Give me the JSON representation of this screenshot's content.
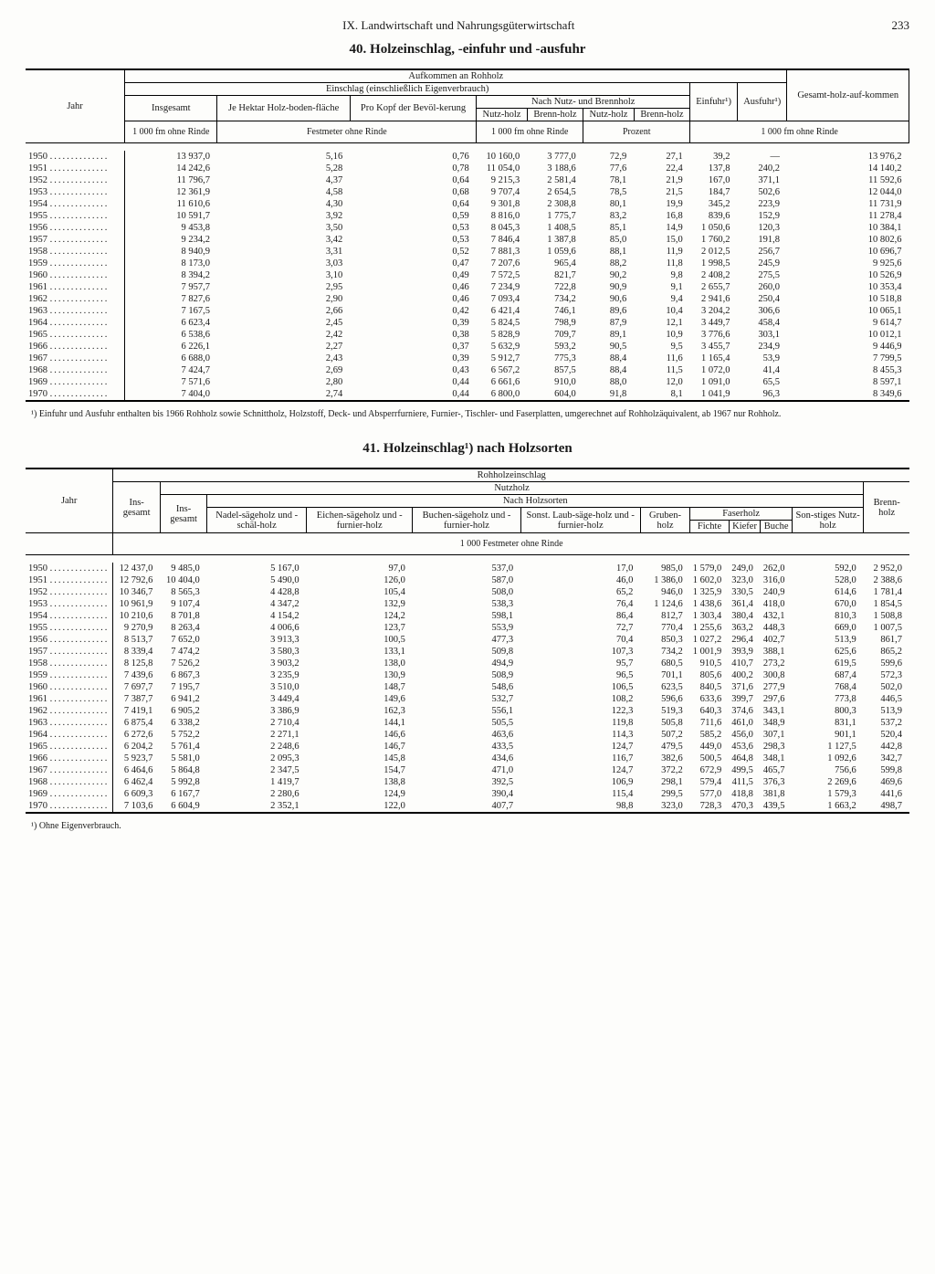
{
  "header": {
    "section": "IX. Landwirtschaft und Nahrungsgüterwirtschaft",
    "page": "233"
  },
  "table40": {
    "title": "40. Holzeinschlag, -einfuhr und -ausfuhr",
    "headers": {
      "jahr": "Jahr",
      "aufkommen": "Aufkommen an Rohholz",
      "einschlag": "Einschlag (einschließlich Eigenverbrauch)",
      "insgesamt": "Insgesamt",
      "je_hektar": "Je Hektar Holz-boden-fläche",
      "pro_kopf": "Pro Kopf der Bevöl-kerung",
      "nach_nutz": "Nach Nutz- und Brennholz",
      "nutzholz": "Nutz-holz",
      "brennholz": "Brenn-holz",
      "einfuhr": "Einfuhr¹)",
      "ausfuhr": "Ausfuhr¹)",
      "gesamt": "Gesamt-holz-auf-kommen",
      "u1": "1 000 fm ohne Rinde",
      "u2": "Festmeter ohne Rinde",
      "u3": "1 000 fm ohne Rinde",
      "u4": "Prozent",
      "u5": "1 000 fm ohne Rinde"
    },
    "rows": [
      [
        "1950",
        "13 937,0",
        "5,16",
        "0,76",
        "10 160,0",
        "3 777,0",
        "72,9",
        "27,1",
        "39,2",
        "—",
        "13 976,2"
      ],
      [
        "1951",
        "14 242,6",
        "5,28",
        "0,78",
        "11 054,0",
        "3 188,6",
        "77,6",
        "22,4",
        "137,8",
        "240,2",
        "14 140,2"
      ],
      [
        "1952",
        "11 796,7",
        "4,37",
        "0,64",
        "9 215,3",
        "2 581,4",
        "78,1",
        "21,9",
        "167,0",
        "371,1",
        "11 592,6"
      ],
      [
        "1953",
        "12 361,9",
        "4,58",
        "0,68",
        "9 707,4",
        "2 654,5",
        "78,5",
        "21,5",
        "184,7",
        "502,6",
        "12 044,0"
      ],
      [
        "1954",
        "11 610,6",
        "4,30",
        "0,64",
        "9 301,8",
        "2 308,8",
        "80,1",
        "19,9",
        "345,2",
        "223,9",
        "11 731,9"
      ],
      [
        "1955",
        "10 591,7",
        "3,92",
        "0,59",
        "8 816,0",
        "1 775,7",
        "83,2",
        "16,8",
        "839,6",
        "152,9",
        "11 278,4"
      ],
      [
        "1956",
        "9 453,8",
        "3,50",
        "0,53",
        "8 045,3",
        "1 408,5",
        "85,1",
        "14,9",
        "1 050,6",
        "120,3",
        "10 384,1"
      ],
      [
        "1957",
        "9 234,2",
        "3,42",
        "0,53",
        "7 846,4",
        "1 387,8",
        "85,0",
        "15,0",
        "1 760,2",
        "191,8",
        "10 802,6"
      ],
      [
        "1958",
        "8 940,9",
        "3,31",
        "0,52",
        "7 881,3",
        "1 059,6",
        "88,1",
        "11,9",
        "2 012,5",
        "256,7",
        "10 696,7"
      ],
      [
        "1959",
        "8 173,0",
        "3,03",
        "0,47",
        "7 207,6",
        "965,4",
        "88,2",
        "11,8",
        "1 998,5",
        "245,9",
        "9 925,6"
      ],
      [
        "1960",
        "8 394,2",
        "3,10",
        "0,49",
        "7 572,5",
        "821,7",
        "90,2",
        "9,8",
        "2 408,2",
        "275,5",
        "10 526,9"
      ],
      [
        "1961",
        "7 957,7",
        "2,95",
        "0,46",
        "7 234,9",
        "722,8",
        "90,9",
        "9,1",
        "2 655,7",
        "260,0",
        "10 353,4"
      ],
      [
        "1962",
        "7 827,6",
        "2,90",
        "0,46",
        "7 093,4",
        "734,2",
        "90,6",
        "9,4",
        "2 941,6",
        "250,4",
        "10 518,8"
      ],
      [
        "1963",
        "7 167,5",
        "2,66",
        "0,42",
        "6 421,4",
        "746,1",
        "89,6",
        "10,4",
        "3 204,2",
        "306,6",
        "10 065,1"
      ],
      [
        "1964",
        "6 623,4",
        "2,45",
        "0,39",
        "5 824,5",
        "798,9",
        "87,9",
        "12,1",
        "3 449,7",
        "458,4",
        "9 614,7"
      ],
      [
        "1965",
        "6 538,6",
        "2,42",
        "0,38",
        "5 828,9",
        "709,7",
        "89,1",
        "10,9",
        "3 776,6",
        "303,1",
        "10 012,1"
      ],
      [
        "1966",
        "6 226,1",
        "2,27",
        "0,37",
        "5 632,9",
        "593,2",
        "90,5",
        "9,5",
        "3 455,7",
        "234,9",
        "9 446,9"
      ],
      [
        "1967",
        "6 688,0",
        "2,43",
        "0,39",
        "5 912,7",
        "775,3",
        "88,4",
        "11,6",
        "1 165,4",
        "53,9",
        "7 799,5"
      ],
      [
        "1968",
        "7 424,7",
        "2,69",
        "0,43",
        "6 567,2",
        "857,5",
        "88,4",
        "11,5",
        "1 072,0",
        "41,4",
        "8 455,3"
      ],
      [
        "1969",
        "7 571,6",
        "2,80",
        "0,44",
        "6 661,6",
        "910,0",
        "88,0",
        "12,0",
        "1 091,0",
        "65,5",
        "8 597,1"
      ],
      [
        "1970",
        "7 404,0",
        "2,74",
        "0,44",
        "6 800,0",
        "604,0",
        "91,8",
        "8,1",
        "1 041,9",
        "96,3",
        "8 349,6"
      ]
    ],
    "footnote": "¹) Einfuhr und Ausfuhr enthalten bis 1966 Rohholz sowie Schnittholz, Holzstoff, Deck- und Absperrfurniere, Furnier-, Tischler- und Faserplatten, umgerechnet auf Rohholzäquivalent, ab 1967 nur Rohholz."
  },
  "table41": {
    "title": "41. Holzeinschlag¹) nach Holzsorten",
    "headers": {
      "jahr": "Jahr",
      "rohholz": "Rohholzeinschlag",
      "insgesamt": "Ins-gesamt",
      "nutzholz": "Nutzholz",
      "nach_holzsorten": "Nach Holzsorten",
      "nadelsage": "Nadel-sägeholz und -schäl-holz",
      "eichen": "Eichen-sägeholz und -furnier-holz",
      "buchen": "Buchen-sägeholz und -furnier-holz",
      "sonst": "Sonst. Laub-säge-holz und -furnier-holz",
      "gruben": "Gruben-holz",
      "faserholz": "Faserholz",
      "fichte": "Fichte",
      "kiefer": "Kiefer",
      "buche": "Buche",
      "sonstiges": "Son-stiges Nutz-holz",
      "brenn": "Brenn-holz",
      "unit": "1 000 Festmeter ohne Rinde"
    },
    "rows": [
      [
        "1950",
        "12 437,0",
        "9 485,0",
        "5 167,0",
        "97,0",
        "537,0",
        "17,0",
        "985,0",
        "1 579,0",
        "249,0",
        "262,0",
        "592,0",
        "2 952,0"
      ],
      [
        "1951",
        "12 792,6",
        "10 404,0",
        "5 490,0",
        "126,0",
        "587,0",
        "46,0",
        "1 386,0",
        "1 602,0",
        "323,0",
        "316,0",
        "528,0",
        "2 388,6"
      ],
      [
        "1952",
        "10 346,7",
        "8 565,3",
        "4 428,8",
        "105,4",
        "508,0",
        "65,2",
        "946,0",
        "1 325,9",
        "330,5",
        "240,9",
        "614,6",
        "1 781,4"
      ],
      [
        "1953",
        "10 961,9",
        "9 107,4",
        "4 347,2",
        "132,9",
        "538,3",
        "76,4",
        "1 124,6",
        "1 438,6",
        "361,4",
        "418,0",
        "670,0",
        "1 854,5"
      ],
      [
        "1954",
        "10 210,6",
        "8 701,8",
        "4 154,2",
        "124,2",
        "598,1",
        "86,4",
        "812,7",
        "1 303,4",
        "380,4",
        "432,1",
        "810,3",
        "1 508,8"
      ],
      [
        "1955",
        "9 270,9",
        "8 263,4",
        "4 006,6",
        "123,7",
        "553,9",
        "72,7",
        "770,4",
        "1 255,6",
        "363,2",
        "448,3",
        "669,0",
        "1 007,5"
      ],
      [
        "1956",
        "8 513,7",
        "7 652,0",
        "3 913,3",
        "100,5",
        "477,3",
        "70,4",
        "850,3",
        "1 027,2",
        "296,4",
        "402,7",
        "513,9",
        "861,7"
      ],
      [
        "1957",
        "8 339,4",
        "7 474,2",
        "3 580,3",
        "133,1",
        "509,8",
        "107,3",
        "734,2",
        "1 001,9",
        "393,9",
        "388,1",
        "625,6",
        "865,2"
      ],
      [
        "1958",
        "8 125,8",
        "7 526,2",
        "3 903,2",
        "138,0",
        "494,9",
        "95,7",
        "680,5",
        "910,5",
        "410,7",
        "273,2",
        "619,5",
        "599,6"
      ],
      [
        "1959",
        "7 439,6",
        "6 867,3",
        "3 235,9",
        "130,9",
        "508,9",
        "96,5",
        "701,1",
        "805,6",
        "400,2",
        "300,8",
        "687,4",
        "572,3"
      ],
      [
        "1960",
        "7 697,7",
        "7 195,7",
        "3 510,0",
        "148,7",
        "548,6",
        "106,5",
        "623,5",
        "840,5",
        "371,6",
        "277,9",
        "768,4",
        "502,0"
      ],
      [
        "1961",
        "7 387,7",
        "6 941,2",
        "3 449,4",
        "149,6",
        "532,7",
        "108,2",
        "596,6",
        "633,6",
        "399,7",
        "297,6",
        "773,8",
        "446,5"
      ],
      [
        "1962",
        "7 419,1",
        "6 905,2",
        "3 386,9",
        "162,3",
        "556,1",
        "122,3",
        "519,3",
        "640,3",
        "374,6",
        "343,1",
        "800,3",
        "513,9"
      ],
      [
        "1963",
        "6 875,4",
        "6 338,2",
        "2 710,4",
        "144,1",
        "505,5",
        "119,8",
        "505,8",
        "711,6",
        "461,0",
        "348,9",
        "831,1",
        "537,2"
      ],
      [
        "1964",
        "6 272,6",
        "5 752,2",
        "2 271,1",
        "146,6",
        "463,6",
        "114,3",
        "507,2",
        "585,2",
        "456,0",
        "307,1",
        "901,1",
        "520,4"
      ],
      [
        "1965",
        "6 204,2",
        "5 761,4",
        "2 248,6",
        "146,7",
        "433,5",
        "124,7",
        "479,5",
        "449,0",
        "453,6",
        "298,3",
        "1 127,5",
        "442,8"
      ],
      [
        "1966",
        "5 923,7",
        "5 581,0",
        "2 095,3",
        "145,8",
        "434,6",
        "116,7",
        "382,6",
        "500,5",
        "464,8",
        "348,1",
        "1 092,6",
        "342,7"
      ],
      [
        "1967",
        "6 464,6",
        "5 864,8",
        "2 347,5",
        "154,7",
        "471,0",
        "124,7",
        "372,2",
        "672,9",
        "499,5",
        "465,7",
        "756,6",
        "599,8"
      ],
      [
        "1968",
        "6 462,4",
        "5 992,8",
        "1 419,7",
        "138,8",
        "392,5",
        "106,9",
        "298,1",
        "579,4",
        "411,5",
        "376,3",
        "2 269,6",
        "469,6"
      ],
      [
        "1969",
        "6 609,3",
        "6 167,7",
        "2 280,6",
        "124,9",
        "390,4",
        "115,4",
        "299,5",
        "577,0",
        "418,8",
        "381,8",
        "1 579,3",
        "441,6"
      ],
      [
        "1970",
        "7 103,6",
        "6 604,9",
        "2 352,1",
        "122,0",
        "407,7",
        "98,8",
        "323,0",
        "728,3",
        "470,3",
        "439,5",
        "1 663,2",
        "498,7"
      ]
    ],
    "footnote": "¹) Ohne Eigenverbrauch."
  }
}
